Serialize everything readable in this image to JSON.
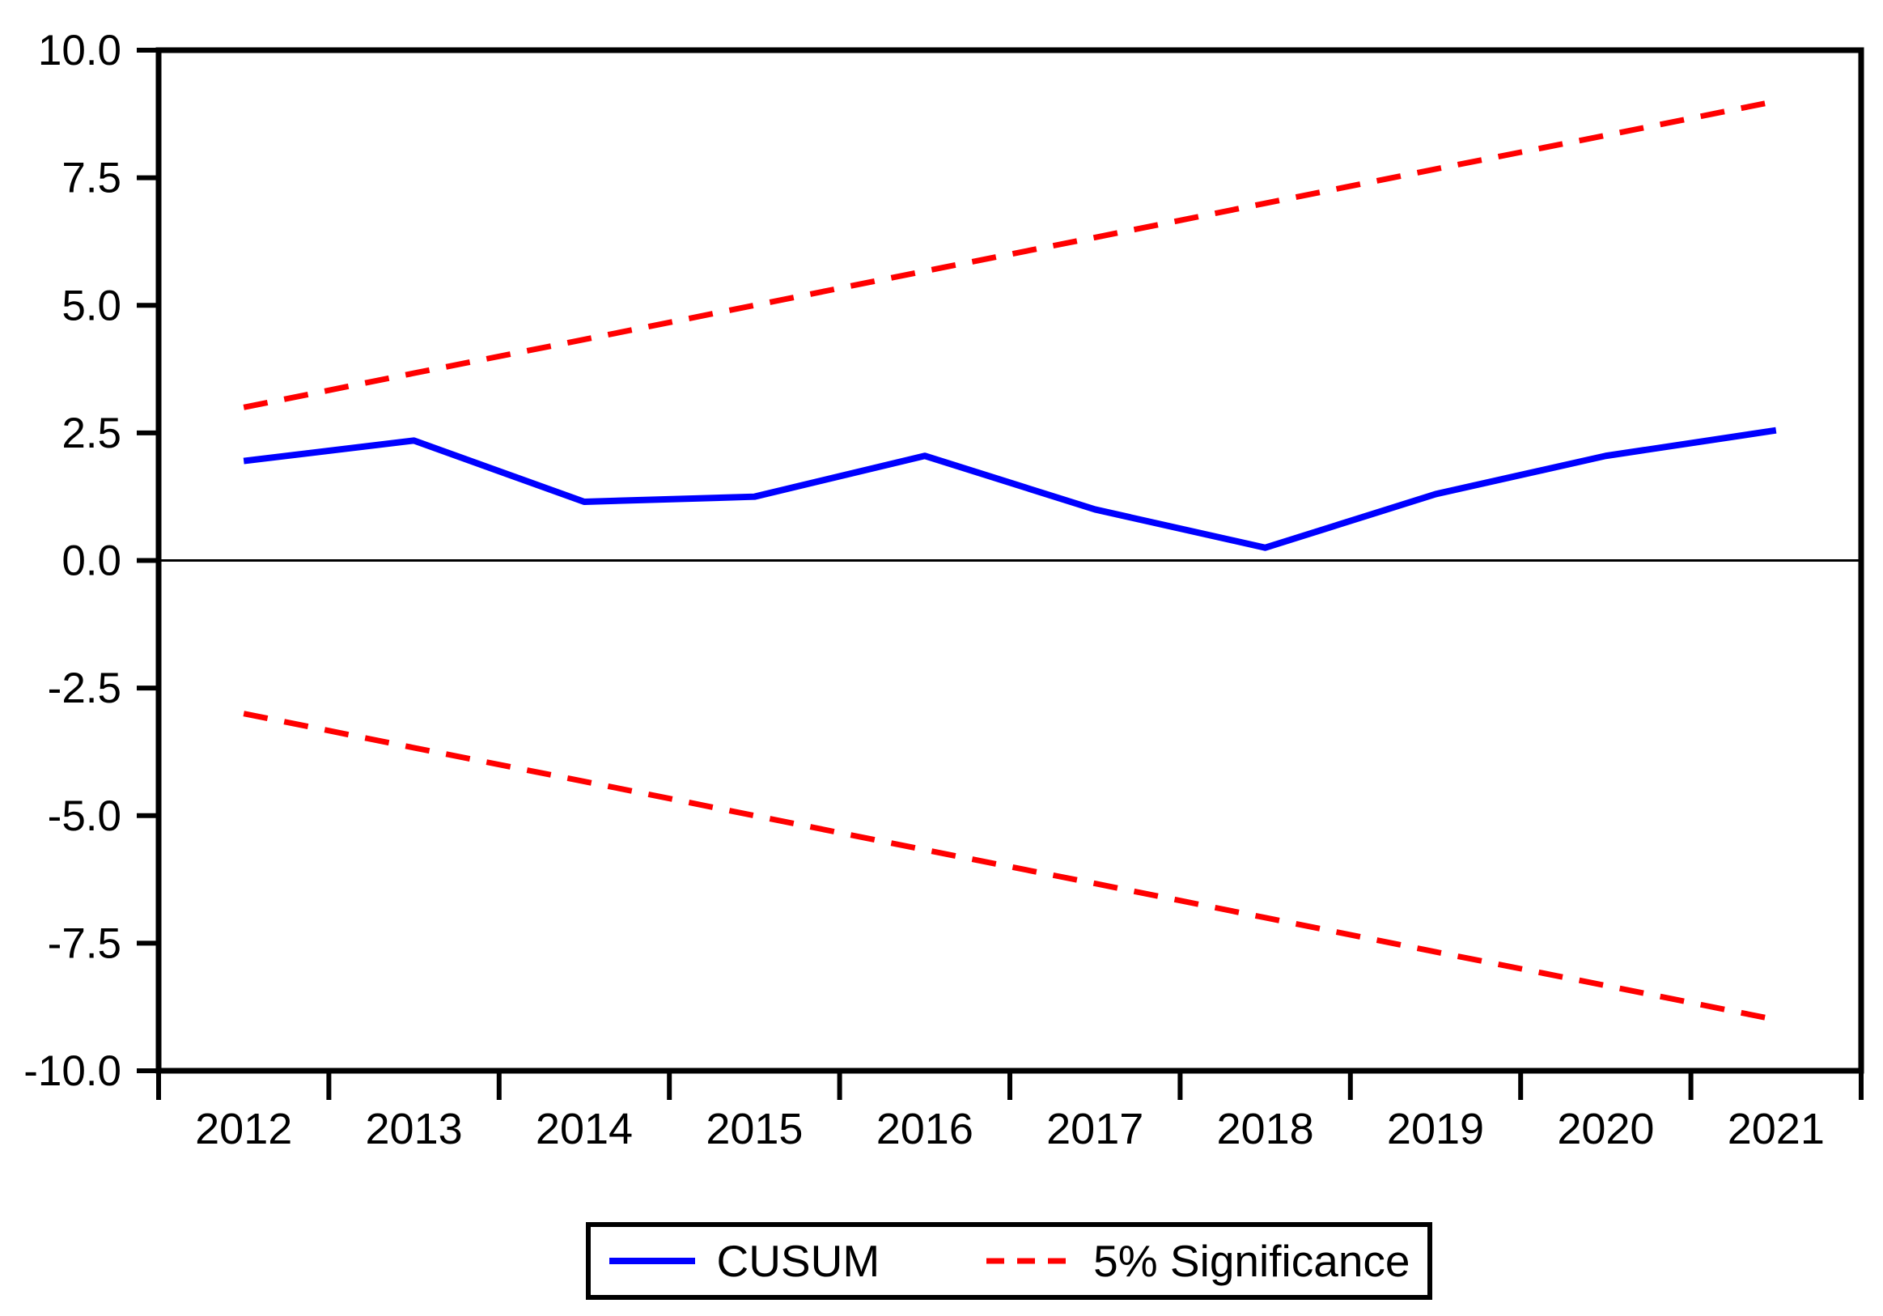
{
  "chart_data": {
    "type": "line",
    "title": "",
    "xlabel": "",
    "ylabel": "",
    "categories": [
      "2012",
      "2013",
      "2014",
      "2015",
      "2016",
      "2017",
      "2018",
      "2019",
      "2020",
      "2021"
    ],
    "ylim": [
      -10,
      10
    ],
    "y_ticks": [
      "10.0",
      "7.5",
      "5.0",
      "2.5",
      "0.0",
      "-2.5",
      "-5.0",
      "-7.5",
      "-10.0"
    ],
    "grid": false,
    "zero_line": true,
    "series": [
      {
        "name": "CUSUM",
        "color": "#0000ff",
        "style": "solid",
        "stroke_width": 8,
        "values": [
          1.95,
          2.35,
          1.15,
          1.25,
          2.05,
          1.0,
          0.25,
          1.3,
          2.05,
          2.55
        ]
      },
      {
        "name": "5% Significance (upper bound)",
        "color": "#ff0000",
        "style": "dashed",
        "stroke_width": 7,
        "values": [
          3.0,
          3.67,
          4.33,
          5.0,
          5.67,
          6.33,
          7.0,
          7.67,
          8.33,
          9.0
        ]
      },
      {
        "name": "5% Significance (lower bound)",
        "color": "#ff0000",
        "style": "dashed",
        "stroke_width": 7,
        "values": [
          -3.0,
          -3.67,
          -4.33,
          -5.0,
          -5.67,
          -6.33,
          -7.0,
          -7.67,
          -8.33,
          -9.0
        ]
      }
    ],
    "legend": {
      "position": "bottom",
      "entries": [
        {
          "label": "CUSUM",
          "color": "#0000ff",
          "style": "solid"
        },
        {
          "label": "5% Significance",
          "color": "#ff0000",
          "style": "dashed"
        }
      ]
    },
    "colors": {
      "axis": "#000000",
      "background": "#ffffff"
    }
  }
}
